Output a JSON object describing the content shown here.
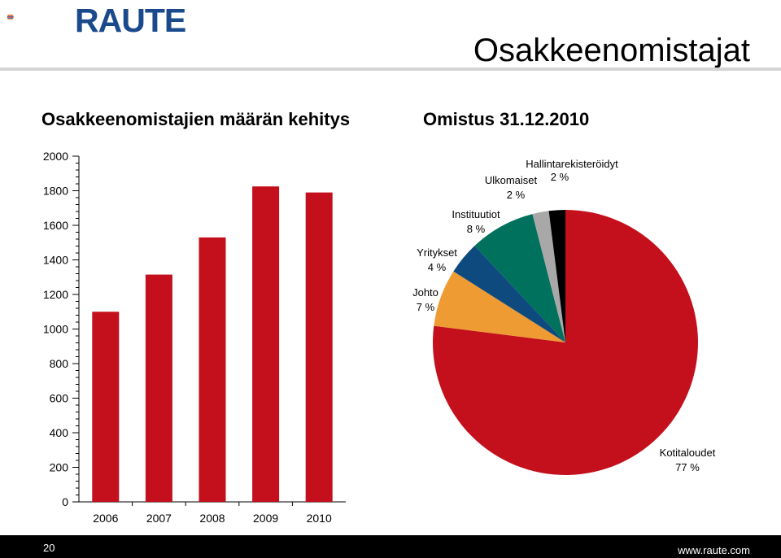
{
  "header": {
    "logo_text": "RAUTE",
    "page_title": "Osakkeenomistajat"
  },
  "colors": {
    "bar": "#c3101c",
    "brand_blue": "#1a4a8c",
    "rule": "#d4d4d4"
  },
  "footer": {
    "page_number": "20",
    "url": "www.raute.com"
  },
  "chart_data": [
    {
      "type": "bar",
      "title": "Osakkeenomistajien määrän kehitys",
      "categories": [
        "2006",
        "2007",
        "2008",
        "2009",
        "2010"
      ],
      "values": [
        1100,
        1315,
        1530,
        1825,
        1790
      ],
      "ylim": [
        0,
        2000
      ],
      "yticks": [
        "0",
        "200",
        "400",
        "600",
        "800",
        "1000",
        "1200",
        "1400",
        "1600",
        "1800",
        "2000"
      ],
      "grid": false,
      "xlabel": "",
      "ylabel": ""
    },
    {
      "type": "pie",
      "title": "Omistus 31.12.2010",
      "slices": [
        {
          "label": "Kotitaloudet",
          "value_label": "77 %",
          "value": 77,
          "color": "#c3101c"
        },
        {
          "label": "Johto",
          "value_label": "7 %",
          "value": 7,
          "color": "#ee9b33"
        },
        {
          "label": "Yritykset",
          "value_label": "4 %",
          "value": 4,
          "color": "#0f4a7e"
        },
        {
          "label": "Instituutiot",
          "value_label": "8 %",
          "value": 8,
          "color": "#00715c"
        },
        {
          "label": "Ulkomaiset",
          "value_label": "2 %",
          "value": 2,
          "color": "#a8a8a8"
        },
        {
          "label": "Hallintarekisteröidyt",
          "value_label": "2 %",
          "value": 2,
          "color": "#000000"
        }
      ]
    }
  ]
}
